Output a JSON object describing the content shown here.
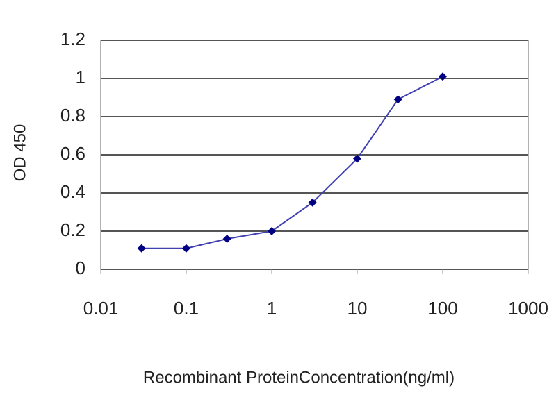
{
  "chart_data": {
    "type": "line",
    "xlabel": "Recombinant ProteinConcentration(ng/ml)",
    "ylabel": "OD 450",
    "x": [
      0.03,
      0.1,
      0.3,
      1,
      3,
      10,
      30,
      100
    ],
    "series": [
      {
        "color": "#000080",
        "line_color": "#4040b0",
        "values": [
          0.11,
          0.11,
          0.16,
          0.2,
          0.35,
          0.58,
          0.89,
          1.01
        ]
      }
    ],
    "xscale": "log",
    "xlim": [
      0.01,
      1000
    ],
    "xticks": [
      0.01,
      0.1,
      1,
      10,
      100,
      1000
    ],
    "ylim": [
      0,
      1.2
    ],
    "yticks": [
      0,
      0.2,
      0.4,
      0.6,
      0.8,
      1,
      1.2
    ],
    "grid": true
  }
}
